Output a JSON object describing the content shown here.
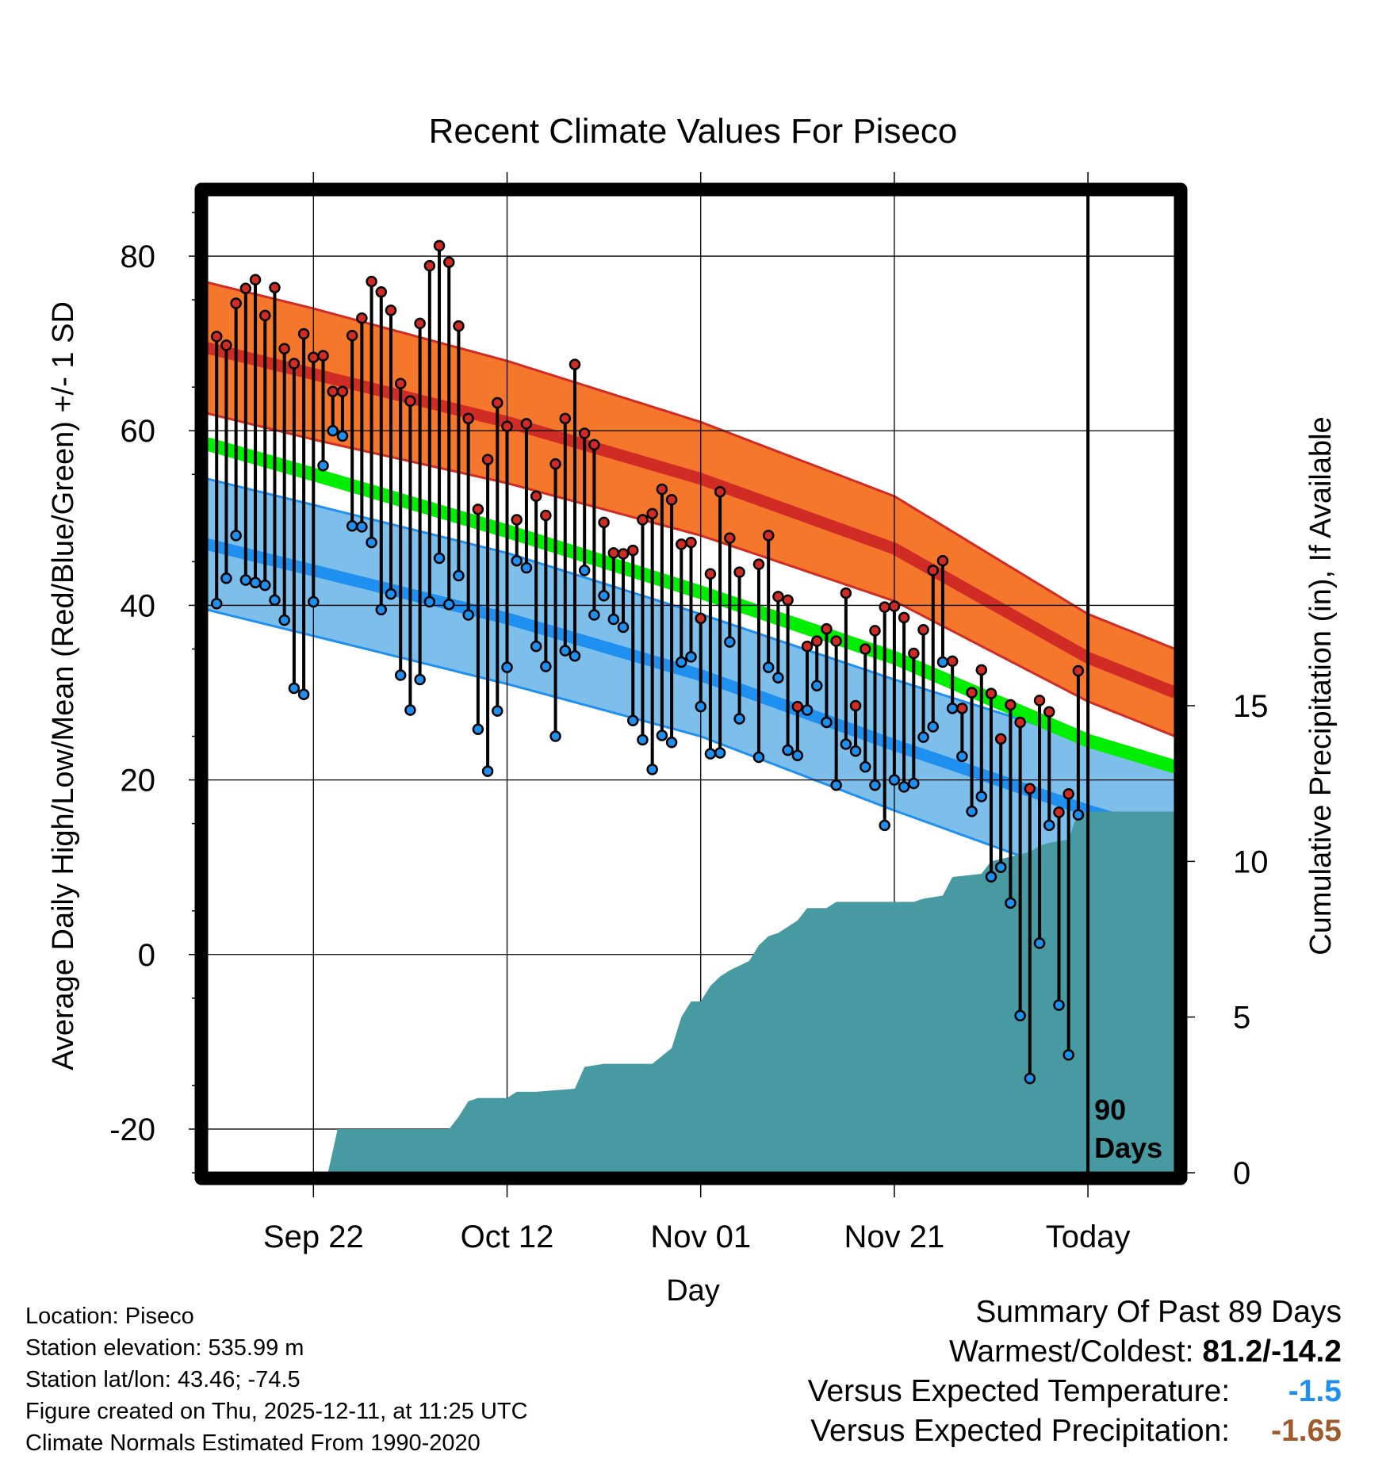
{
  "chart_data": {
    "type": "line",
    "title": "Recent Climate Values For Piseco",
    "xlabel": "Day",
    "ylabel": "Average Daily High/Low/Mean (Red/Blue/Green) +/- 1 SD",
    "y2label": "Cumulative Precipitation (in), If Available",
    "xlim": [
      -11,
      89
    ],
    "ylim": [
      -25,
      87
    ],
    "y2lim": [
      0,
      31.4
    ],
    "x_ticks": [
      {
        "day": 0,
        "label": "Sep 22"
      },
      {
        "day": 20,
        "label": "Oct 12"
      },
      {
        "day": 40,
        "label": "Nov 01"
      },
      {
        "day": 60,
        "label": "Nov 21"
      },
      {
        "day": 80,
        "label": "Today"
      }
    ],
    "y_ticks": [
      -20,
      0,
      20,
      40,
      60,
      80
    ],
    "y2_ticks": [
      0,
      5,
      10,
      15
    ],
    "today_day": 80,
    "window_label": [
      "90",
      "Days"
    ],
    "normal_high": {
      "days": [
        -11,
        0,
        20,
        40,
        60,
        80,
        89
      ],
      "mean": [
        69.5,
        66.5,
        61,
        54.5,
        46.5,
        34,
        30
      ],
      "sd": [
        7.5,
        7.5,
        7,
        6.5,
        6,
        5,
        5
      ]
    },
    "normal_low": {
      "days": [
        -11,
        0,
        20,
        40,
        60,
        80,
        89
      ],
      "mean": [
        47,
        44,
        38.5,
        32,
        24,
        16.5,
        13.5
      ],
      "sd": [
        7.5,
        7.5,
        7.5,
        7,
        7.5,
        8,
        8
      ]
    },
    "normal_mean": {
      "days": [
        -11,
        0,
        20,
        40,
        60,
        80,
        89
      ],
      "mean": [
        58.5,
        55,
        48.5,
        41.5,
        34,
        24.5,
        21.5
      ]
    },
    "observed": [
      {
        "day": -10,
        "high": 70.8,
        "low": 40.2
      },
      {
        "day": -9,
        "high": 69.8,
        "low": 43.1
      },
      {
        "day": -8,
        "high": 74.6,
        "low": 48.0
      },
      {
        "day": -7,
        "high": 76.3,
        "low": 42.9
      },
      {
        "day": -6,
        "high": 77.3,
        "low": 42.6
      },
      {
        "day": -5,
        "high": 73.2,
        "low": 42.3
      },
      {
        "day": -4,
        "high": 76.4,
        "low": 40.6
      },
      {
        "day": -3,
        "high": 69.4,
        "low": 38.3
      },
      {
        "day": -2,
        "high": 67.7,
        "low": 30.5
      },
      {
        "day": -1,
        "high": 71.1,
        "low": 29.8
      },
      {
        "day": 0,
        "high": 68.4,
        "low": 40.4
      },
      {
        "day": 1,
        "high": 68.6,
        "low": 56.0
      },
      {
        "day": 2,
        "high": 64.5,
        "low": 60.0
      },
      {
        "day": 3,
        "high": 64.5,
        "low": 59.4
      },
      {
        "day": 4,
        "high": 70.9,
        "low": 49.1
      },
      {
        "day": 5,
        "high": 72.9,
        "low": 49.0
      },
      {
        "day": 6,
        "high": 77.1,
        "low": 47.2
      },
      {
        "day": 7,
        "high": 75.9,
        "low": 39.5
      },
      {
        "day": 8,
        "high": 73.8,
        "low": 41.3
      },
      {
        "day": 9,
        "high": 65.4,
        "low": 32.0
      },
      {
        "day": 10,
        "high": 63.4,
        "low": 28.0
      },
      {
        "day": 11,
        "high": 72.3,
        "low": 31.5
      },
      {
        "day": 12,
        "high": 78.9,
        "low": 40.4
      },
      {
        "day": 13,
        "high": 81.2,
        "low": 45.4
      },
      {
        "day": 14,
        "high": 79.3,
        "low": 40.1
      },
      {
        "day": 15,
        "high": 72.0,
        "low": 43.4
      },
      {
        "day": 16,
        "high": 61.4,
        "low": 38.9
      },
      {
        "day": 17,
        "high": 51.0,
        "low": 25.8
      },
      {
        "day": 18,
        "high": 56.7,
        "low": 21.0
      },
      {
        "day": 19,
        "high": 63.2,
        "low": 27.9
      },
      {
        "day": 20,
        "high": 60.5,
        "low": 32.9
      },
      {
        "day": 21,
        "high": 49.8,
        "low": 45.1
      },
      {
        "day": 22,
        "high": 60.8,
        "low": 44.3
      },
      {
        "day": 23,
        "high": 52.5,
        "low": 35.3
      },
      {
        "day": 24,
        "high": 50.3,
        "low": 33.0
      },
      {
        "day": 25,
        "high": 56.2,
        "low": 25.0
      },
      {
        "day": 26,
        "high": 61.4,
        "low": 34.8
      },
      {
        "day": 27,
        "high": 67.6,
        "low": 34.2
      },
      {
        "day": 28,
        "high": 59.7,
        "low": 44.0
      },
      {
        "day": 29,
        "high": 58.4,
        "low": 38.9
      },
      {
        "day": 30,
        "high": 49.5,
        "low": 41.1
      },
      {
        "day": 31,
        "high": 46.0,
        "low": 38.4
      },
      {
        "day": 32,
        "high": 45.9,
        "low": 37.5
      },
      {
        "day": 33,
        "high": 46.3,
        "low": 26.8
      },
      {
        "day": 34,
        "high": 49.8,
        "low": 24.6
      },
      {
        "day": 35,
        "high": 50.5,
        "low": 21.2
      },
      {
        "day": 36,
        "high": 53.3,
        "low": 25.1
      },
      {
        "day": 37,
        "high": 52.1,
        "low": 24.3
      },
      {
        "day": 38,
        "high": 47.0,
        "low": 33.5
      },
      {
        "day": 39,
        "high": 47.2,
        "low": 34.1
      },
      {
        "day": 40,
        "high": 38.5,
        "low": 28.4
      },
      {
        "day": 41,
        "high": 43.6,
        "low": 23.0
      },
      {
        "day": 42,
        "high": 53.0,
        "low": 23.1
      },
      {
        "day": 43,
        "high": 47.7,
        "low": 35.8
      },
      {
        "day": 44,
        "high": 43.8,
        "low": 27.0
      },
      {
        "day": 46,
        "high": 44.7,
        "low": 22.6
      },
      {
        "day": 47,
        "high": 48.0,
        "low": 32.9
      },
      {
        "day": 48,
        "high": 41.0,
        "low": 31.7
      },
      {
        "day": 49,
        "high": 40.6,
        "low": 23.4
      },
      {
        "day": 50,
        "high": 28.4,
        "low": 22.8
      },
      {
        "day": 51,
        "high": 35.3,
        "low": 28.0
      },
      {
        "day": 52,
        "high": 35.9,
        "low": 30.8
      },
      {
        "day": 53,
        "high": 37.3,
        "low": 26.6
      },
      {
        "day": 54,
        "high": 35.9,
        "low": 19.4
      },
      {
        "day": 55,
        "high": 41.4,
        "low": 24.1
      },
      {
        "day": 56,
        "high": 28.5,
        "low": 23.3
      },
      {
        "day": 57,
        "high": 35.0,
        "low": 21.5
      },
      {
        "day": 58,
        "high": 37.1,
        "low": 19.4
      },
      {
        "day": 59,
        "high": 39.8,
        "low": 14.8
      },
      {
        "day": 60,
        "high": 39.9,
        "low": 20.0
      },
      {
        "day": 61,
        "high": 38.6,
        "low": 19.2
      },
      {
        "day": 62,
        "high": 34.5,
        "low": 19.6
      },
      {
        "day": 63,
        "high": 37.2,
        "low": 24.9
      },
      {
        "day": 64,
        "high": 44.0,
        "low": 26.1
      },
      {
        "day": 65,
        "high": 45.1,
        "low": 33.5
      },
      {
        "day": 66,
        "high": 33.6,
        "low": 28.2
      },
      {
        "day": 67,
        "high": 28.2,
        "low": 22.7
      },
      {
        "day": 68,
        "high": 30.0,
        "low": 16.4
      },
      {
        "day": 69,
        "high": 32.6,
        "low": 18.1
      },
      {
        "day": 70,
        "high": 29.9,
        "low": 8.9
      },
      {
        "day": 71,
        "high": 24.7,
        "low": 10.0
      },
      {
        "day": 72,
        "high": 28.6,
        "low": 5.9
      },
      {
        "day": 73,
        "high": 26.6,
        "low": -7.0
      },
      {
        "day": 74,
        "high": 19.0,
        "low": -14.2
      },
      {
        "day": 75,
        "high": 29.1,
        "low": 1.3
      },
      {
        "day": 76,
        "high": 27.8,
        "low": 14.8
      },
      {
        "day": 77,
        "high": 16.3,
        "low": -5.8
      },
      {
        "day": 78,
        "high": 18.4,
        "low": -11.5
      },
      {
        "day": 79,
        "high": 32.5,
        "low": 16.0
      }
    ],
    "cumulative_precip": {
      "days": [
        -11,
        1.5,
        2.5,
        14,
        15,
        16,
        17,
        20,
        21,
        23,
        27,
        28,
        30,
        35,
        37,
        38,
        39,
        40,
        41,
        42,
        43,
        45,
        46,
        47,
        48,
        49,
        50,
        51,
        53,
        54,
        55,
        57,
        59,
        62,
        63,
        65,
        66,
        69,
        70,
        74,
        75,
        76,
        78,
        79,
        89
      ],
      "values": [
        0,
        0,
        1.4,
        1.4,
        1.8,
        2.3,
        2.4,
        2.4,
        2.6,
        2.6,
        2.7,
        3.4,
        3.5,
        3.5,
        4.0,
        5.0,
        5.5,
        5.5,
        6.0,
        6.3,
        6.5,
        6.8,
        7.3,
        7.6,
        7.7,
        7.9,
        8.1,
        8.5,
        8.5,
        8.7,
        8.7,
        8.7,
        8.7,
        8.7,
        8.8,
        8.9,
        9.5,
        9.6,
        10.0,
        10.3,
        10.5,
        10.6,
        10.7,
        11.6,
        11.6
      ]
    },
    "colors": {
      "high_band": "#f4772b",
      "high_band_edge": "#d12b26",
      "high_mean_line": "#d12b26",
      "low_band": "#7dbfea",
      "low_band_edge": "#1f8ff0",
      "low_mean_line": "#1f8ff0",
      "overlap": "#9a1216",
      "mean_line": "#00ee00",
      "precip": "#479aa2",
      "high_point": "#d12b26",
      "low_point": "#1f8ff0"
    }
  },
  "location": {
    "location_line": "Location: Piseco",
    "elevation_line": "Station elevation: 535.99 m",
    "latlon_line": "Station lat/lon: 43.46; -74.5",
    "created_line": "Figure created on Thu, 2025-12-11, at 11:25 UTC",
    "normals_line": "Climate Normals Estimated From 1990-2020"
  },
  "summary": {
    "heading": "Summary Of Past 89 Days",
    "warm_cold_label": "Warmest/Coldest:",
    "warm_cold_value": "81.2/-14.2",
    "temp_label": "Versus Expected Temperature:",
    "temp_value": "-1.5",
    "temp_color": "#1f8ff0",
    "precip_label": "Versus Expected Precipitation:",
    "precip_value": "-1.65",
    "precip_color": "#a05a2c"
  }
}
